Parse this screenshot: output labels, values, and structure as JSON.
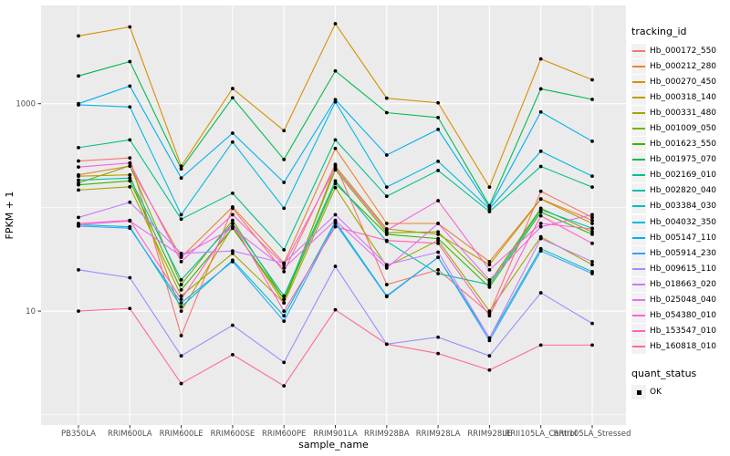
{
  "figure": {
    "panel_bg": "#EBEBEB",
    "grid_color": "#FFFFFF",
    "tick_color": "#333333",
    "tick_label_color": "#4D4D4D",
    "axis_title_color": "#000000",
    "point_color": "#000000"
  },
  "legend": {
    "title": "tracking_id",
    "quant_title": "quant_status",
    "quant_items": [
      "OK"
    ]
  },
  "chart_data": {
    "type": "line",
    "title": "",
    "xlabel": "sample_name",
    "ylabel": "FPKM + 1",
    "y_scale": "log10",
    "ylim": [
      0.8,
      8800
    ],
    "grid": "on",
    "legend_position": "right",
    "y_ticks": [
      {
        "value": 1000,
        "label": "1000"
      },
      {
        "value": 10,
        "label": "10"
      }
    ],
    "y_minor": [
      100,
      1
    ],
    "categories": [
      "PB350LA",
      "RRIM600LA",
      "RRIM600LE",
      "RRIM600SE",
      "RRIM600PE",
      "RRIM901LA",
      "RRIM928BA",
      "RRIM928LA",
      "RRIM928LE",
      "RRII105LA_Control",
      "RRII105LA_Stressed"
    ],
    "series": [
      {
        "name": "Hb_000172_550",
        "color": "#F8766D",
        "values": [
          280,
          300,
          5.8,
          98,
          24,
          260,
          18,
          25,
          9.5,
          143,
          80
        ]
      },
      {
        "name": "Hb_000212_280",
        "color": "#EA8331",
        "values": [
          206,
          250,
          33,
          101,
          29,
          370,
          70,
          70,
          30,
          121,
          75
        ]
      },
      {
        "name": "Hb_000270_450",
        "color": "#D89000",
        "values": [
          4500,
          5500,
          250,
          1400,
          550,
          5900,
          1130,
          1020,
          157,
          2700,
          1700
        ]
      },
      {
        "name": "Hb_000318_140",
        "color": "#C09B00",
        "values": [
          200,
          206,
          10,
          65,
          12,
          250,
          62,
          55,
          28,
          120,
          70
        ]
      },
      {
        "name": "Hb_000331_480",
        "color": "#A3A500",
        "values": [
          147,
          158,
          14,
          36,
          12,
          155,
          27,
          48,
          10,
          52,
          28
        ]
      },
      {
        "name": "Hb_001009_050",
        "color": "#7CAE00",
        "values": [
          172,
          252,
          18,
          75,
          13,
          230,
          57,
          58,
          19,
          98,
          58
        ]
      },
      {
        "name": "Hb_001623_550",
        "color": "#39B600",
        "values": [
          165,
          180,
          16,
          63,
          13,
          170,
          55,
          50,
          17,
          90,
          55
        ]
      },
      {
        "name": "Hb_001975_070",
        "color": "#00BB4E",
        "values": [
          1850,
          2550,
          235,
          1140,
          290,
          2070,
          820,
          735,
          104,
          1390,
          1100
        ]
      },
      {
        "name": "Hb_002169_010",
        "color": "#00C08E",
        "values": [
          377,
          448,
          77,
          137,
          39,
          448,
          128,
          227,
          91,
          248,
          157
        ]
      },
      {
        "name": "Hb_002820_040",
        "color": "#00C1A7",
        "values": [
          183,
          192,
          20,
          70,
          14,
          180,
          47,
          23,
          18,
          95,
          63
        ]
      },
      {
        "name": "Hb_003384_030",
        "color": "#00BFC4",
        "values": [
          68,
          65,
          11,
          31,
          9,
          73,
          14,
          33,
          5.5,
          40,
          24
        ]
      },
      {
        "name": "Hb_004032_350",
        "color": "#00BAE0",
        "values": [
          975,
          930,
          85,
          427,
          98,
          1040,
          157,
          278,
          97,
          348,
          200
        ]
      },
      {
        "name": "Hb_005147_110",
        "color": "#00B0F6",
        "values": [
          1000,
          1480,
          192,
          520,
          174,
          1095,
          320,
          565,
          100,
          833,
          434
        ]
      },
      {
        "name": "Hb_005914_230",
        "color": "#35A2FF",
        "values": [
          66,
          63,
          12,
          30,
          8,
          70,
          13.8,
          33,
          5.2,
          38,
          23
        ]
      },
      {
        "name": "Hb_009615_110",
        "color": "#9590FF",
        "values": [
          25,
          21,
          3.7,
          7.3,
          3.2,
          27,
          4.8,
          5.6,
          3.7,
          15,
          7.6
        ]
      },
      {
        "name": "Hb_018663_020",
        "color": "#C77CFF",
        "values": [
          80,
          112,
          36,
          38,
          29,
          85,
          28,
          37,
          5.5,
          50,
          30
        ]
      },
      {
        "name": "Hb_025048_040",
        "color": "#E76BF3",
        "values": [
          68,
          74,
          34,
          63,
          26,
          75,
          26,
          70,
          20,
          65,
          85
        ]
      },
      {
        "name": "Hb_054380_010",
        "color": "#FA62DB",
        "values": [
          245,
          268,
          30,
          85,
          28,
          240,
          60,
          116,
          25,
          70,
          62
        ]
      },
      {
        "name": "Hb_153547_010",
        "color": "#FF62BC",
        "values": [
          70,
          75,
          13,
          70,
          10,
          65,
          48,
          45,
          9,
          83,
          45
        ]
      },
      {
        "name": "Hb_160818_010",
        "color": "#FF6A98",
        "values": [
          10,
          10.6,
          2,
          3.8,
          1.9,
          10.3,
          4.8,
          3.9,
          2.7,
          4.7,
          4.7
        ]
      }
    ]
  }
}
